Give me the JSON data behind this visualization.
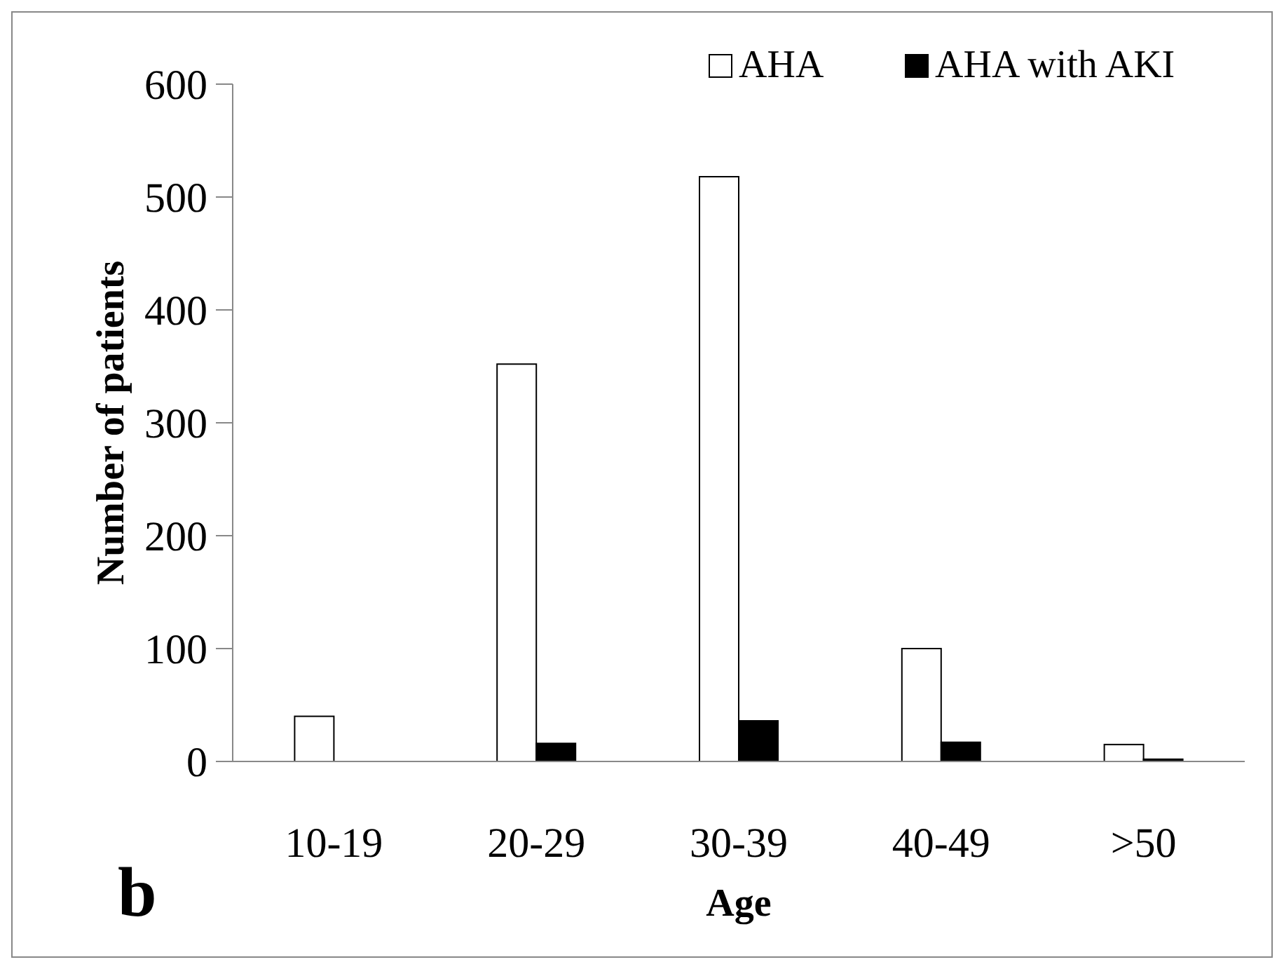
{
  "chart_data": {
    "type": "bar",
    "xlabel": "Age",
    "ylabel": "Number of patients",
    "categories": [
      "10-19",
      "20-29",
      "30-39",
      "40-49",
      ">50"
    ],
    "series": [
      {
        "name": "AHA",
        "color": "#ffffff",
        "values": [
          40,
          352,
          518,
          100,
          15
        ]
      },
      {
        "name": "AHA with AKI",
        "color": "#000000",
        "values": [
          0,
          16,
          36,
          17,
          2
        ]
      }
    ],
    "ylim": [
      0,
      600
    ],
    "yticks": [
      0,
      100,
      200,
      300,
      400,
      500,
      600
    ],
    "legend": "top right",
    "grid": false,
    "annotations": [
      "b"
    ]
  }
}
